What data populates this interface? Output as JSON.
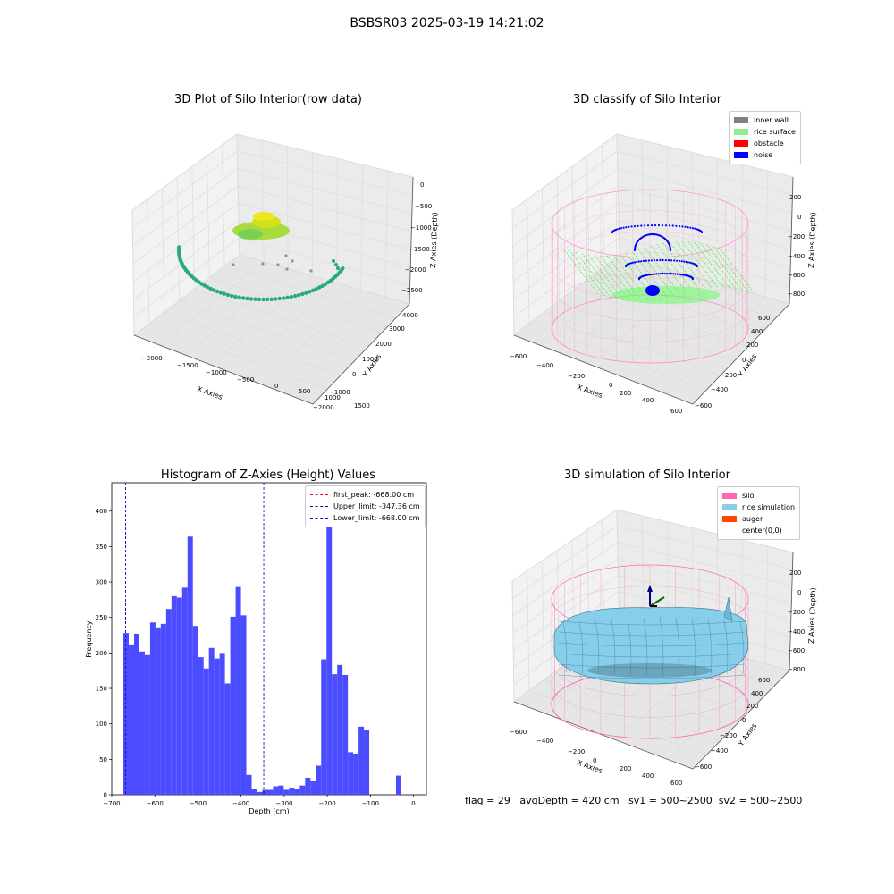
{
  "suptitle": "BSBSR03 2025-03-19 14:21:02",
  "footer": {
    "flag": "flag = 29",
    "avg": "avgDepth = 420 cm",
    "sv1": "sv1 = 500~2500",
    "sv2": "sv2 = 500~2500"
  },
  "colors": {
    "wall": "#808080",
    "surface": "#90ee90",
    "obstacle": "#ff0000",
    "noise": "#0000ff",
    "silo": "#ff69b4",
    "rice_sim": "#87ceeb",
    "auger": "#ff4500",
    "hist": "#4b4bff"
  },
  "chart_data": [
    {
      "type": "scatter",
      "title": "3D Plot of Silo Interior(row data)",
      "xlabel": "X Axies",
      "ylabel": "Y Axies",
      "zlabel": "Z Axies (Depth)",
      "x_ticks": [
        "−2000",
        "−1500",
        "−1000",
        "−500",
        "0",
        "500",
        "1000",
        "1500"
      ],
      "y_ticks": [
        "−2000",
        "−1000",
        "0",
        "1000",
        "2000",
        "3000",
        "4000"
      ],
      "z_ticks": [
        "0",
        "−500",
        "−1000",
        "−1500",
        "−2000",
        "−2500"
      ]
    },
    {
      "type": "scatter",
      "title": "3D classify of Silo Interior",
      "xlabel": "X Axies",
      "ylabel": "Y Axies",
      "zlabel": "Z Axies (Depth)",
      "legend": [
        "inner wall",
        "rice surface",
        "obstacle",
        "noise"
      ],
      "legend_loc": "top-right",
      "x_ticks": [
        "−600",
        "−400",
        "−200",
        "0",
        "200",
        "400",
        "600"
      ],
      "y_ticks": [
        "−600",
        "−400",
        "−200",
        "0",
        "200",
        "400",
        "600"
      ],
      "z_ticks": [
        "200",
        "0",
        "−200",
        "−400",
        "−600",
        "−800"
      ]
    },
    {
      "type": "bar",
      "title": "Histogram of Z-Axies (Height) Values",
      "xlabel": "Depth (cm)",
      "ylabel": "Frequency",
      "xlim": [
        -700,
        30
      ],
      "ylim": [
        0,
        440
      ],
      "x_ticks": [
        -700,
        -600,
        -500,
        -400,
        -300,
        -200,
        -100,
        0
      ],
      "x_tick_labels": [
        "−700",
        "−600",
        "−500",
        "−400",
        "−300",
        "−200",
        "−100",
        "0"
      ],
      "y_ticks": [
        0,
        50,
        100,
        150,
        200,
        250,
        300,
        350,
        400
      ],
      "bin_start": -673,
      "bin_width": 12.4,
      "values": [
        228,
        212,
        227,
        202,
        197,
        243,
        236,
        241,
        262,
        280,
        278,
        292,
        364,
        238,
        194,
        178,
        207,
        192,
        200,
        157,
        251,
        293,
        253,
        28,
        8,
        4,
        7,
        7,
        12,
        13,
        7,
        10,
        8,
        13,
        24,
        19,
        41,
        191,
        419,
        170,
        183,
        169,
        60,
        58,
        96,
        92,
        0,
        0,
        0,
        0,
        0,
        27
      ],
      "vlines": [
        {
          "name": "first_peak: -668.00 cm",
          "x": -668,
          "color": "#ff0000"
        },
        {
          "name": "Upper_limit: -347.36 cm",
          "x": -347.36,
          "color": "#00008b"
        },
        {
          "name": "Lower_limit: -668.00 cm",
          "x": -668,
          "color": "#0000ff"
        }
      ],
      "legend_loc": "top-right"
    },
    {
      "type": "area",
      "title": "3D simulation of Silo Interior",
      "xlabel": "X Axies",
      "ylabel": "Y Axies",
      "zlabel": "Z Axies (Depth)",
      "legend": [
        "silo",
        "rice simulation",
        "auger",
        "center(0,0)"
      ],
      "legend_loc": "top-right",
      "x_ticks": [
        "−600",
        "−400",
        "−200",
        "0",
        "200",
        "400",
        "600"
      ],
      "y_ticks": [
        "−600",
        "−400",
        "−200",
        "0",
        "200",
        "400",
        "600"
      ],
      "z_ticks": [
        "200",
        "0",
        "−200",
        "−400",
        "−600",
        "−800"
      ]
    }
  ]
}
